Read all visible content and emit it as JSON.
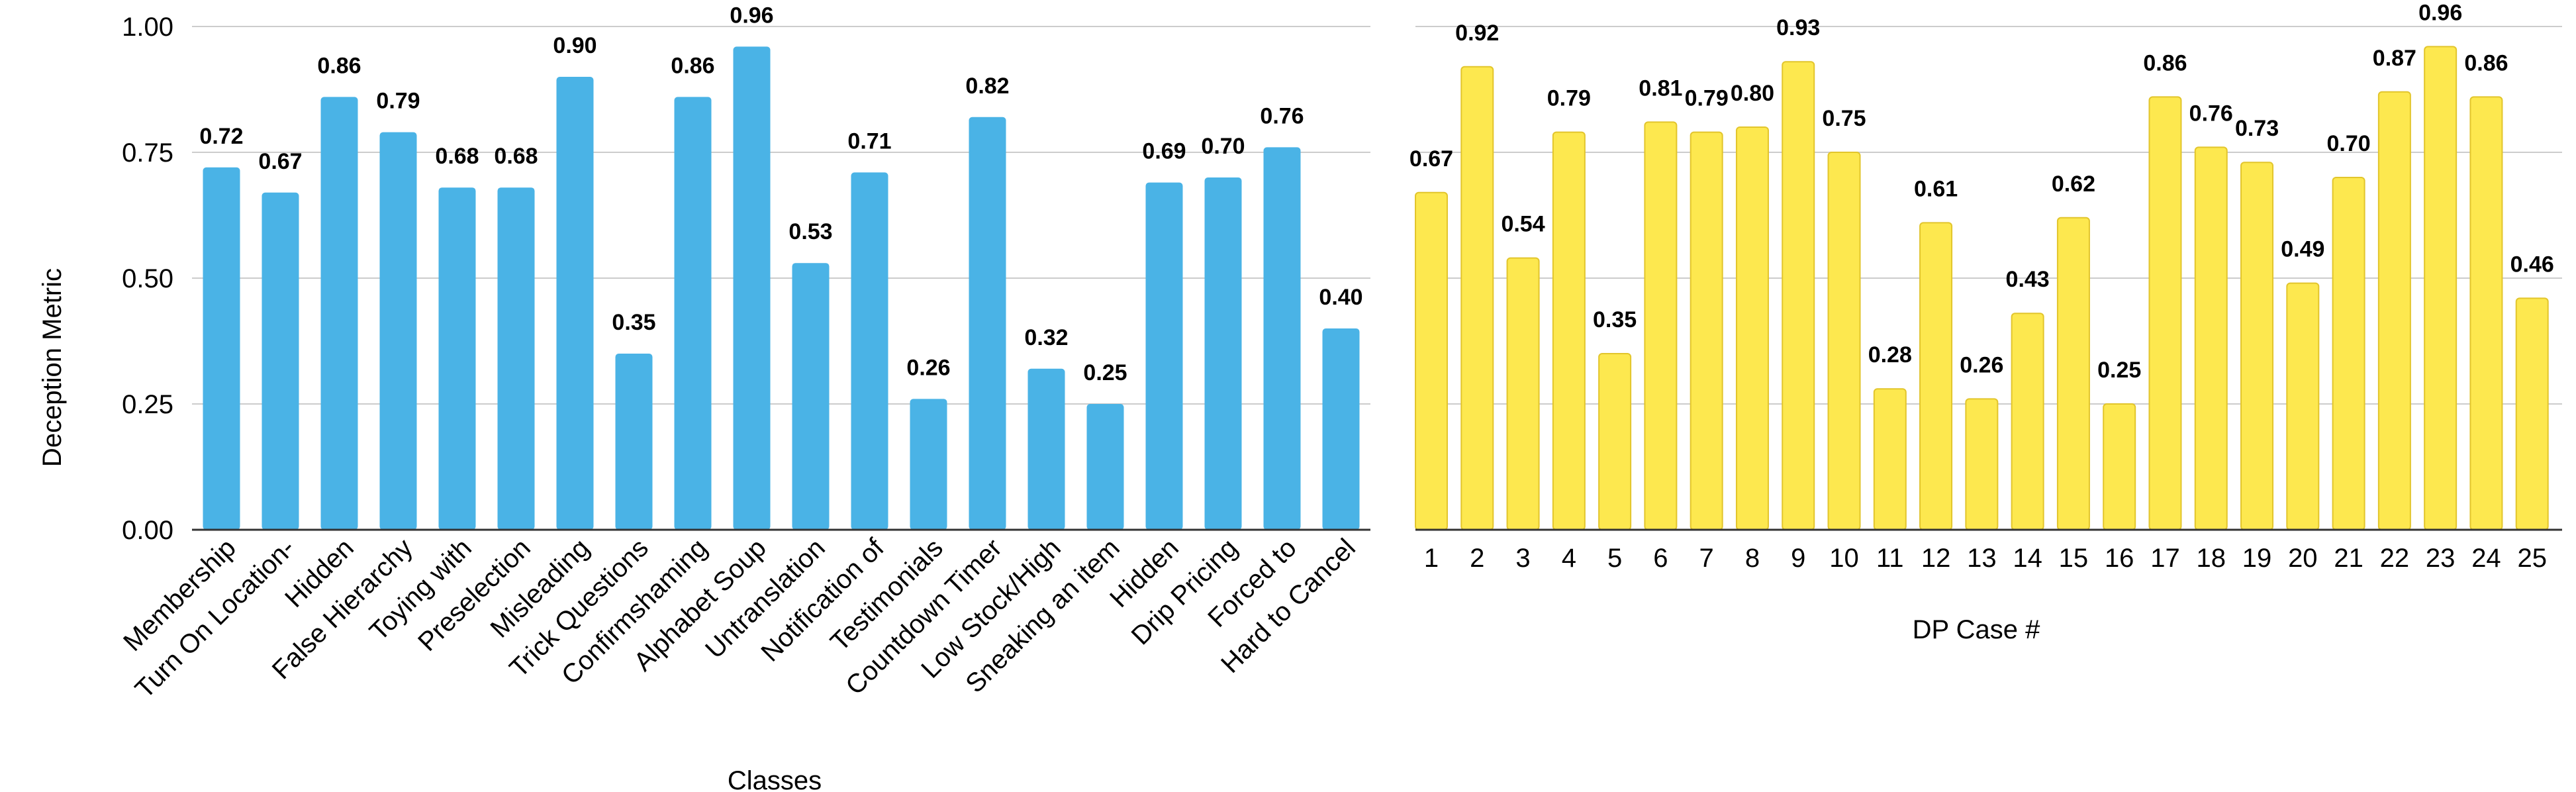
{
  "chart_data": [
    {
      "type": "bar",
      "title": "",
      "xlabel": "Classes",
      "ylabel": "Deception Metric",
      "ylim": [
        0,
        1.0
      ],
      "yticks": [
        "0.00",
        "0.25",
        "0.50",
        "0.75",
        "1.00"
      ],
      "grid": true,
      "bar_color": "#4ab3e6",
      "categories": [
        "Membership",
        "Turn On Location-",
        "Hidden",
        "False Hierarchy",
        "Toying with",
        "Preselection",
        "Misleading",
        "Trick Questions",
        "Confirmshaming",
        "Alphabet Soup",
        "Untranslation",
        "Notification of",
        "Testimonials",
        "Countdown Timer",
        "Low Stock/High",
        "Sneaking an item",
        "Hidden",
        "Drip Pricing",
        "Forced to",
        "Hard to Cancel"
      ],
      "values": [
        0.72,
        0.67,
        0.86,
        0.79,
        0.68,
        0.68,
        0.9,
        0.35,
        0.86,
        0.96,
        0.53,
        0.71,
        0.26,
        0.82,
        0.32,
        0.25,
        0.69,
        0.7,
        0.76,
        0.4
      ],
      "labels": [
        "0.72",
        "0.67",
        "0.86",
        "0.79",
        "0.68",
        "0.68",
        "0.90",
        "0.35",
        "0.86",
        "0.96",
        "0.53",
        "0.71",
        "0.26",
        "0.82",
        "0.32",
        "0.25",
        "0.69",
        "0.70",
        "0.76",
        "0.40"
      ]
    },
    {
      "type": "bar",
      "title": "",
      "xlabel": "DP Case #",
      "ylabel": "",
      "ylim": [
        0,
        1.0
      ],
      "grid": true,
      "bar_color": "#fde84f",
      "bar_stroke": "#e2c52c",
      "categories": [
        "1",
        "2",
        "3",
        "4",
        "5",
        "6",
        "7",
        "8",
        "9",
        "10",
        "11",
        "12",
        "13",
        "14",
        "15",
        "16",
        "17",
        "18",
        "19",
        "20",
        "21",
        "22",
        "23",
        "24",
        "25"
      ],
      "values": [
        0.67,
        0.92,
        0.54,
        0.79,
        0.35,
        0.81,
        0.79,
        0.8,
        0.93,
        0.75,
        0.28,
        0.61,
        0.26,
        0.43,
        0.62,
        0.25,
        0.86,
        0.76,
        0.73,
        0.49,
        0.7,
        0.87,
        0.96,
        0.86,
        0.46
      ],
      "labels": [
        "0.67",
        "0.92",
        "0.54",
        "0.79",
        "0.35",
        "0.81",
        "0.79",
        "0.80",
        "0.93",
        "0.75",
        "0.28",
        "0.61",
        "0.26",
        "0.43",
        "0.62",
        "0.25",
        "0.86",
        "0.76",
        "0.73",
        "0.49",
        "0.70",
        "0.87",
        "0.96",
        "0.86",
        "0.46"
      ]
    }
  ]
}
